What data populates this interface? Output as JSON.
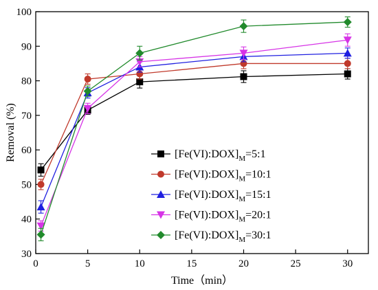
{
  "chart_data": {
    "type": "line",
    "xlabel": "Time（min）",
    "ylabel": "Removal (%)",
    "xlim": [
      0,
      32
    ],
    "ylim": [
      30,
      100
    ],
    "xticks": [
      0,
      5,
      10,
      15,
      20,
      25,
      30
    ],
    "yticks": [
      30,
      40,
      50,
      60,
      70,
      80,
      90,
      100
    ],
    "grid": false,
    "legend_position": "lower-right",
    "series": [
      {
        "label_main": "[Fe(VI):DOX]",
        "label_sub": "M",
        "label_ratio": "=5:1",
        "color": "#000000",
        "marker": "square",
        "x": [
          0.5,
          5,
          10,
          20,
          30
        ],
        "y": [
          54.2,
          71.5,
          79.7,
          81.2,
          82.0
        ],
        "err": [
          1.8,
          1.2,
          1.8,
          1.7,
          1.5
        ]
      },
      {
        "label_main": "[Fe(VI):DOX]",
        "label_sub": "M",
        "label_ratio": "=10:1",
        "color": "#c0392b",
        "marker": "circle",
        "x": [
          0.5,
          5,
          10,
          20,
          30
        ],
        "y": [
          50.0,
          80.5,
          82.0,
          85.0,
          85.0
        ],
        "err": [
          1.5,
          1.5,
          1.5,
          1.5,
          1.5
        ]
      },
      {
        "label_main": "[Fe(VI):DOX]",
        "label_sub": "M",
        "label_ratio": "=15:1",
        "color": "#1f1fe0",
        "marker": "triangle-up",
        "x": [
          0.5,
          5,
          10,
          20,
          30
        ],
        "y": [
          43.5,
          76.5,
          84.0,
          87.0,
          88.0
        ],
        "err": [
          1.8,
          1.5,
          1.5,
          1.5,
          1.5
        ]
      },
      {
        "label_main": "[Fe(VI):DOX]",
        "label_sub": "M",
        "label_ratio": "=20:1",
        "color": "#d633e6",
        "marker": "triangle-down",
        "x": [
          0.5,
          5,
          10,
          20,
          30
        ],
        "y": [
          38.0,
          72.0,
          85.5,
          88.0,
          91.8
        ],
        "err": [
          1.5,
          1.5,
          1.5,
          1.8,
          1.8
        ]
      },
      {
        "label_main": "[Fe(VI):DOX]",
        "label_sub": "M",
        "label_ratio": "=30:1",
        "color": "#218a2c",
        "marker": "diamond",
        "x": [
          0.5,
          5,
          10,
          20,
          30
        ],
        "y": [
          35.5,
          77.0,
          88.0,
          95.8,
          97.0
        ],
        "err": [
          1.8,
          1.5,
          2.0,
          1.8,
          1.5
        ]
      }
    ]
  }
}
